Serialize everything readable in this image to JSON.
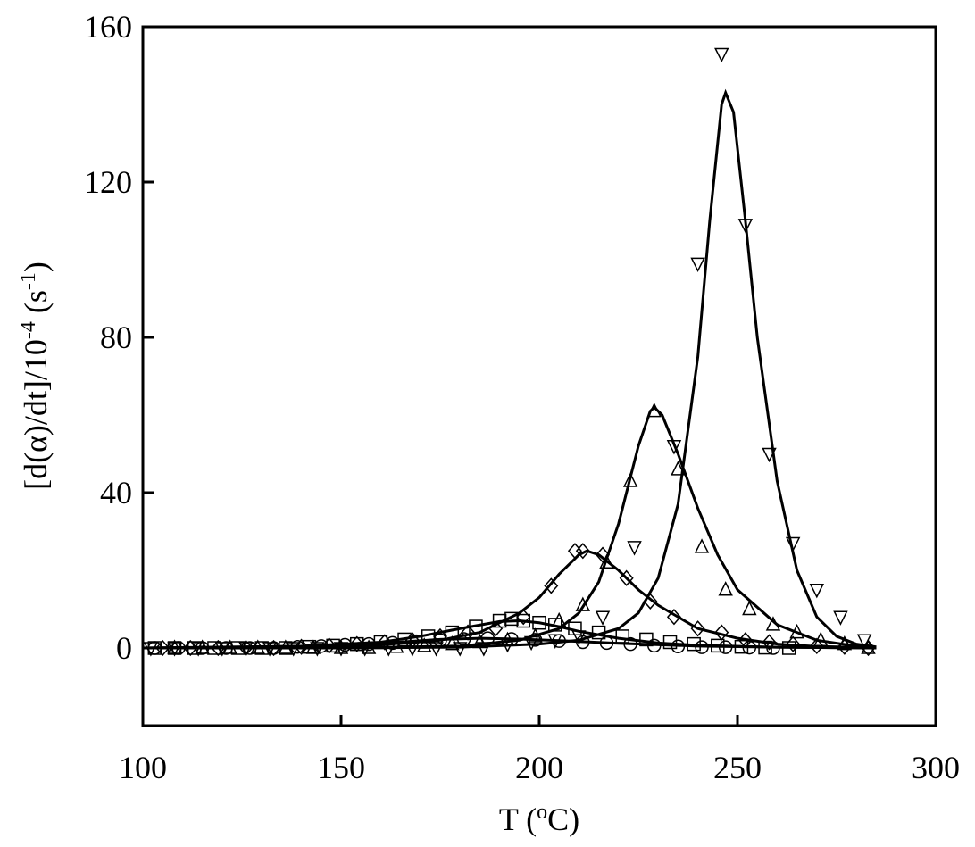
{
  "chart_data": {
    "type": "scatter",
    "x_label_parts": [
      "T (",
      "o",
      "C)"
    ],
    "y_label_parts": [
      "[d(α)/dt]/10",
      "-4",
      " (s",
      "-1",
      ")"
    ],
    "xlim": [
      100,
      300
    ],
    "ylim": [
      -20,
      160
    ],
    "xticks": [
      100,
      150,
      200,
      250,
      300
    ],
    "yticks": [
      0,
      40,
      80,
      120,
      160
    ],
    "color": "#000000",
    "series": [
      {
        "marker": "circle",
        "x": [
          103,
          109,
          115,
          121,
          127,
          133,
          139,
          145,
          151,
          157,
          163,
          169,
          175,
          181,
          187,
          193,
          199,
          205,
          211,
          217,
          223,
          229,
          235,
          241,
          247,
          253,
          259
        ],
        "values": [
          0,
          0,
          0,
          0,
          0,
          0,
          0.3,
          0.5,
          0.8,
          1,
          1.3,
          1.7,
          2,
          2.3,
          2.5,
          2.3,
          2.1,
          1.8,
          1.5,
          1.3,
          1,
          0.6,
          0.4,
          0.2,
          0.2,
          0.1,
          0
        ],
        "fit_x": [
          100,
          140,
          160,
          175,
          185,
          195,
          205,
          220,
          240,
          260,
          285
        ],
        "fit_y": [
          0,
          0.4,
          1.2,
          2.2,
          2.5,
          2.3,
          1.9,
          1.2,
          0.5,
          0.2,
          0
        ]
      },
      {
        "marker": "square",
        "x": [
          103,
          108,
          113,
          118,
          124,
          130,
          136,
          142,
          148,
          154,
          160,
          166,
          172,
          178,
          184,
          190,
          193,
          196,
          200,
          204,
          209,
          215,
          221,
          227,
          233,
          239,
          245,
          251,
          257,
          263
        ],
        "values": [
          0,
          0,
          0,
          0,
          0,
          0,
          0,
          0.3,
          0.6,
          1,
          1.5,
          2.2,
          3,
          4,
          5.5,
          7,
          7.5,
          7,
          6.5,
          6,
          5,
          4,
          3,
          2.2,
          1.5,
          1,
          0.6,
          0.3,
          0.1,
          0
        ],
        "fit_x": [
          100,
          140,
          160,
          170,
          180,
          190,
          195,
          200,
          205,
          210,
          220,
          230,
          240,
          260,
          285
        ],
        "fit_y": [
          0,
          0.5,
          1.5,
          3,
          5,
          6.8,
          7,
          6.5,
          5.5,
          4.3,
          2.5,
          1.3,
          0.7,
          0.2,
          0
        ]
      },
      {
        "marker": "diamond",
        "x": [
          105,
          112,
          119,
          126,
          133,
          140,
          147,
          154,
          161,
          168,
          175,
          182,
          189,
          196,
          203,
          209,
          211,
          216,
          222,
          228,
          234,
          240,
          246,
          252,
          258,
          264,
          270,
          277,
          283
        ],
        "values": [
          0,
          0,
          0,
          0,
          0,
          0.3,
          0.6,
          1,
          1.5,
          2,
          3,
          4,
          5,
          8,
          16,
          25,
          25,
          24,
          18,
          12,
          8,
          5,
          4,
          2,
          1.5,
          1,
          0.5,
          0.3,
          0
        ],
        "fit_x": [
          100,
          140,
          160,
          175,
          185,
          195,
          200,
          205,
          210,
          212,
          215,
          220,
          225,
          230,
          240,
          250,
          260,
          270,
          285
        ],
        "fit_y": [
          0,
          0.2,
          0.8,
          2,
          4,
          9,
          13,
          19,
          24,
          25,
          24,
          20,
          15,
          11,
          5,
          2.5,
          1,
          0.4,
          0.1
        ]
      },
      {
        "marker": "triangle-up",
        "x": [
          108,
          115,
          122,
          129,
          136,
          143,
          150,
          157,
          164,
          171,
          178,
          185,
          192,
          199,
          205,
          211,
          217,
          223,
          229,
          235,
          241,
          247,
          253,
          259,
          265,
          271,
          277,
          283
        ],
        "values": [
          0,
          0,
          0,
          0,
          0,
          0,
          0,
          0,
          0.3,
          0.5,
          1,
          1.5,
          2,
          3,
          7,
          11,
          22,
          43,
          61,
          46,
          26,
          15,
          10,
          6,
          4,
          2,
          1,
          0
        ],
        "fit_x": [
          100,
          150,
          180,
          195,
          205,
          210,
          215,
          220,
          225,
          228,
          229,
          231,
          235,
          240,
          245,
          250,
          260,
          270,
          280,
          285
        ],
        "fit_y": [
          0,
          0,
          0.5,
          2,
          5,
          9,
          17,
          32,
          52,
          61,
          62,
          60,
          50,
          36,
          24,
          15,
          6,
          2,
          0.5,
          0.2
        ]
      },
      {
        "marker": "triangle-down",
        "x": [
          102,
          108,
          114,
          120,
          126,
          132,
          138,
          144,
          150,
          156,
          162,
          168,
          174,
          180,
          186,
          192,
          198,
          204,
          210,
          216,
          224,
          234,
          240,
          246,
          252,
          258,
          264,
          270,
          276,
          282
        ],
        "values": [
          0,
          0,
          0,
          0,
          0,
          0,
          0,
          0,
          0,
          0,
          0,
          0,
          0,
          0,
          0,
          1,
          1.5,
          2,
          3,
          8,
          26,
          52,
          99,
          153,
          109,
          50,
          27,
          15,
          8,
          2
        ],
        "fit_x": [
          100,
          150,
          180,
          200,
          210,
          220,
          225,
          230,
          235,
          240,
          243,
          246,
          247,
          249,
          252,
          255,
          260,
          265,
          270,
          275,
          280,
          285
        ],
        "fit_y": [
          0,
          0,
          0.2,
          1,
          2,
          5,
          9,
          18,
          37,
          75,
          110,
          140,
          143,
          138,
          110,
          80,
          43,
          20,
          8,
          3,
          1,
          0.3
        ]
      }
    ]
  }
}
